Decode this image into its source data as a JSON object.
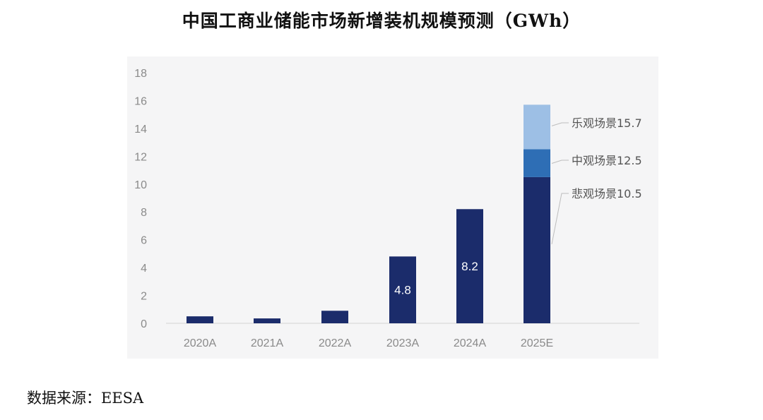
{
  "title": "中国工商业储能市场新增装机规模预测（GWh）",
  "source": "数据来源：EESA",
  "chart_data": {
    "type": "bar",
    "stacked": true,
    "title": "中国工商业储能市场新增装机规模预测（GWh）",
    "xlabel": "",
    "ylabel": "",
    "ylim": [
      0,
      18
    ],
    "yticks": [
      0,
      2,
      4,
      6,
      8,
      10,
      12,
      14,
      16,
      18
    ],
    "grid": false,
    "categories": [
      "2020A",
      "2021A",
      "2022A",
      "2023A",
      "2024A",
      "2025E"
    ],
    "values": [
      0.5,
      0.35,
      0.9,
      4.8,
      8.2,
      15.7
    ],
    "data_labels": [
      "",
      "",
      "",
      "4.8",
      "8.2",
      ""
    ],
    "scenario_2025E": [
      {
        "label": "悲观场景10.5",
        "value": 10.5,
        "color": "#1b2c6b"
      },
      {
        "label": "中观场景12.5",
        "value": 12.5,
        "color": "#2e6eb5"
      },
      {
        "label": "乐观场景15.7",
        "value": 15.7,
        "color": "#9dbfe5"
      }
    ],
    "bar_color": "#1b2c6b"
  }
}
